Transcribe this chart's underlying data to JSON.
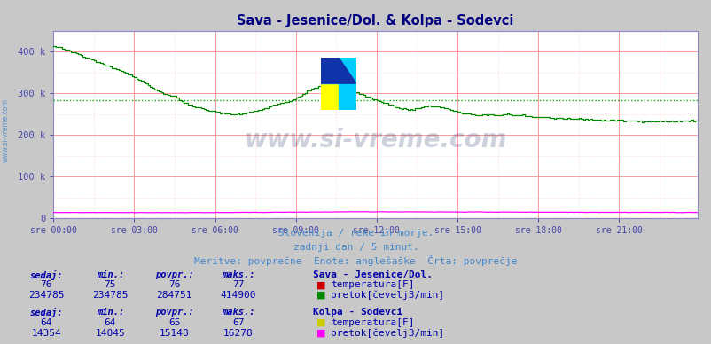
{
  "title": "Sava - Jesenice/Dol. & Kolpa - Sodevci",
  "title_color": "#000080",
  "bg_color": "#c8c8c8",
  "plot_bg_color": "#ffffff",
  "grid_major_color": "#ff9999",
  "grid_minor_color": "#ffcccc",
  "tick_color": "#4444aa",
  "border_color": "#8888cc",
  "xlim": [
    0,
    287
  ],
  "ylim": [
    0,
    450000
  ],
  "yticks": [
    0,
    100000,
    200000,
    300000,
    400000
  ],
  "ytick_labels": [
    "0",
    "100 k",
    "200 k",
    "300 k",
    "400 k"
  ],
  "xtick_positions": [
    0,
    36,
    72,
    108,
    144,
    180,
    216,
    252
  ],
  "xtick_labels": [
    "sre 00:00",
    "sre 03:00",
    "sre 06:00",
    "sre 09:00",
    "sre 12:00",
    "sre 15:00",
    "sre 18:00",
    "sre 21:00"
  ],
  "watermark_text": "www.si-vreme.com",
  "watermark_color": "#1a3060",
  "subtitle1": "Slovenija / reke in morje.",
  "subtitle2": "zadnji dan / 5 minut.",
  "subtitle3": "Meritve: povprečne  Enote: anglešaške  Črta: povprečje",
  "subtitle_color": "#4488cc",
  "sidewater_color": "#4488cc",
  "sava_flow_color": "#008800",
  "sava_temp_color": "#cc0000",
  "kolpa_flow_color": "#ff00ff",
  "kolpa_temp_color": "#cccc00",
  "avg_line_color": "#00aa00",
  "avg_line_value": 284751,
  "table_header_color": "#0000aa",
  "table_value_color": "#0000aa",
  "table_data": {
    "sava": {
      "sedaj": [
        76,
        234785
      ],
      "min": [
        75,
        234785
      ],
      "povpr": [
        76,
        284751
      ],
      "maks": [
        77,
        414900
      ]
    },
    "kolpa": {
      "sedaj": [
        64,
        14354
      ],
      "min": [
        64,
        14045
      ],
      "povpr": [
        65,
        15148
      ],
      "maks": [
        67,
        16278
      ]
    }
  }
}
